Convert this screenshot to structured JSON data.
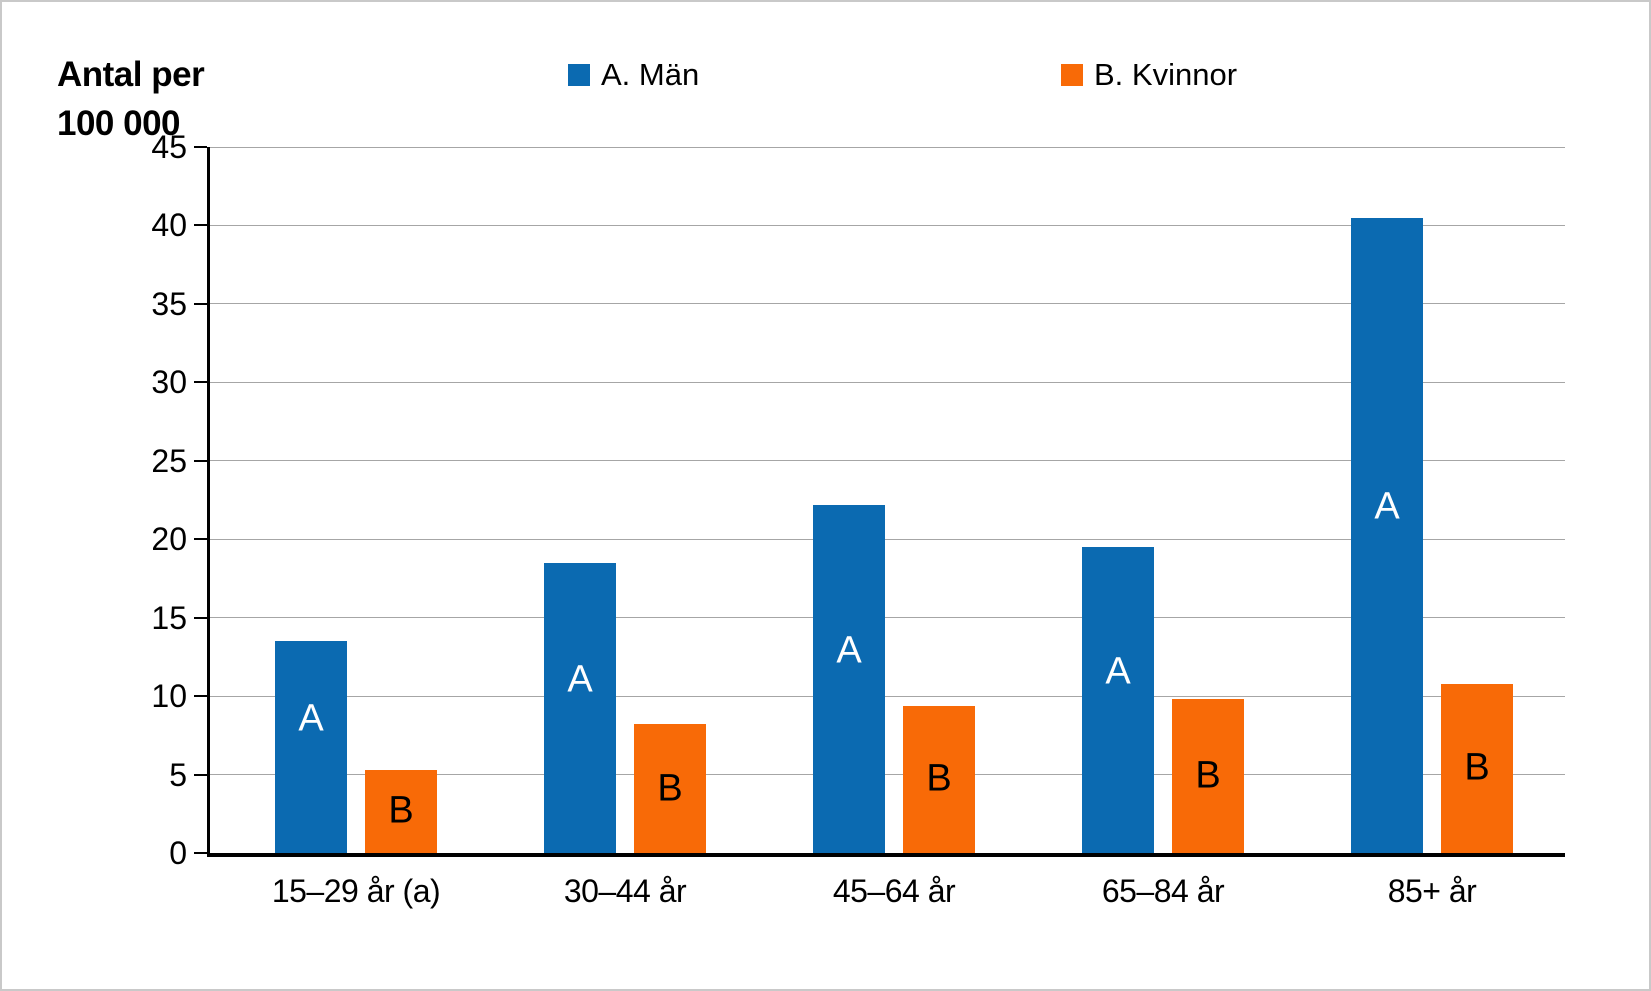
{
  "chart_data": {
    "type": "bar",
    "title": "",
    "ylabel": "Antal per 100 000",
    "ylabel_lines": [
      "Antal per",
      "100 000"
    ],
    "xlabel": "",
    "ylim": [
      0,
      45
    ],
    "ytick_step": 5,
    "grid": true,
    "legend_position": "top",
    "categories": [
      "15–29 år (a)",
      "30–44 år",
      "45–64 år",
      "65–84 år",
      "85+ år"
    ],
    "series": [
      {
        "name": "A. Män",
        "bar_label": "A",
        "color": "#0B6AB1",
        "bar_label_color": "#FFFFFF",
        "values": [
          13.5,
          18.5,
          22.2,
          19.5,
          40.5
        ]
      },
      {
        "name": "B. Kvinnor",
        "bar_label": "B",
        "color": "#F86A07",
        "bar_label_color": "#000000",
        "values": [
          5.3,
          8.2,
          9.4,
          9.8,
          10.8
        ]
      }
    ],
    "colors": {
      "axis": "#000000",
      "gridline": "#A6A6A6",
      "background": "#FFFFFF"
    }
  }
}
